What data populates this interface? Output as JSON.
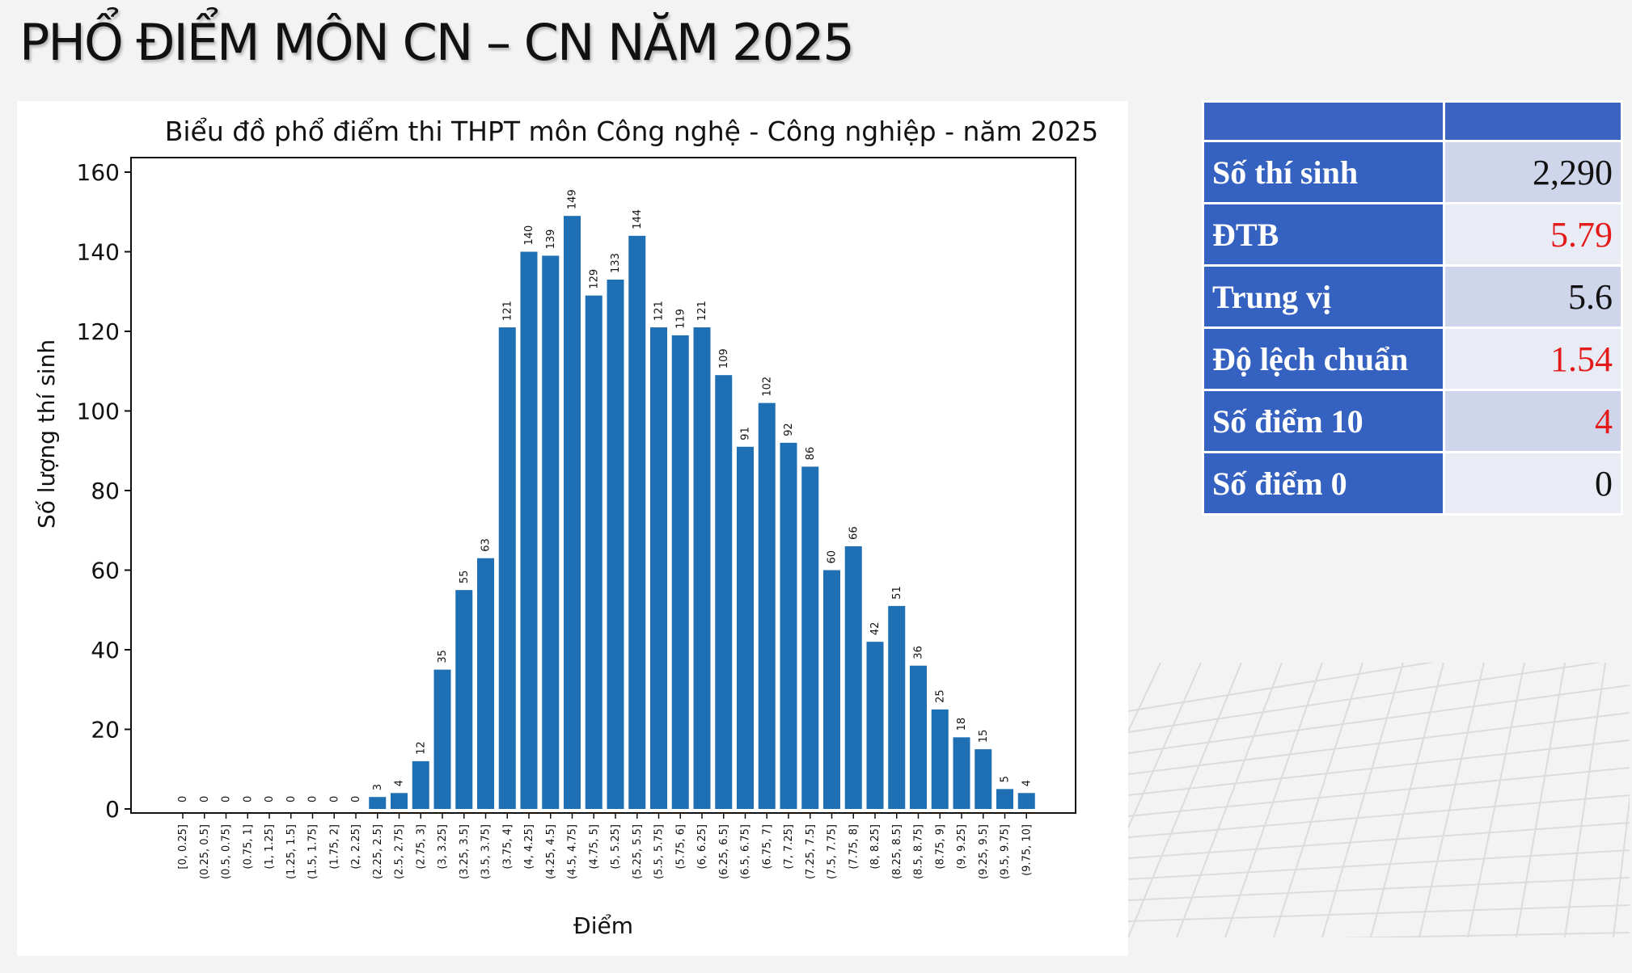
{
  "slide": {
    "title": "PHỔ ĐIỂM MÔN CN – CN NĂM 2025"
  },
  "stats_table": {
    "header": [
      "",
      ""
    ],
    "rows": [
      {
        "label": "Số thí sinh",
        "value": "2,290",
        "color": "#111111"
      },
      {
        "label": "ĐTB",
        "value": "5.79",
        "color": "#e31b1b"
      },
      {
        "label": "Trung vị",
        "value": "5.6",
        "color": "#111111"
      },
      {
        "label": "Độ lệch chuẩn",
        "value": "1.54",
        "color": "#e31b1b"
      },
      {
        "label": "Số điểm 10",
        "value": "4",
        "color": "#e31b1b"
      },
      {
        "label": "Số điểm 0",
        "value": "0",
        "color": "#111111"
      }
    ]
  },
  "chart_data": {
    "type": "bar",
    "title": "Biểu đồ phổ điểm thi THPT môn Công nghệ - Công nghiệp - năm 2025",
    "xlabel": "Điểm",
    "ylabel": "Số lượng thí sinh",
    "ylim": [
      0,
      160
    ],
    "yticks": [
      0,
      20,
      40,
      60,
      80,
      100,
      120,
      140,
      160
    ],
    "bar_color": "#1f6fb4",
    "grid": false,
    "categories": [
      "[0, 0.25]",
      "(0.25, 0.5]",
      "(0.5, 0.75]",
      "(0.75, 1]",
      "(1, 1.25]",
      "(1.25, 1.5]",
      "(1.5, 1.75]",
      "(1.75, 2]",
      "(2, 2.25]",
      "(2.25, 2.5]",
      "(2.5, 2.75]",
      "(2.75, 3]",
      "(3, 3.25]",
      "(3.25, 3.5]",
      "(3.5, 3.75]",
      "(3.75, 4]",
      "(4, 4.25]",
      "(4.25, 4.5]",
      "(4.5, 4.75]",
      "(4.75, 5]",
      "(5, 5.25]",
      "(5.25, 5.5]",
      "(5.5, 5.75]",
      "(5.75, 6]",
      "(6, 6.25]",
      "(6.25, 6.5]",
      "(6.5, 6.75]",
      "(6.75, 7]",
      "(7, 7.25]",
      "(7.25, 7.5]",
      "(7.5, 7.75]",
      "(7.75, 8]",
      "(8, 8.25]",
      "(8.25, 8.5]",
      "(8.5, 8.75]",
      "(8.75, 9]",
      "(9, 9.25]",
      "(9.25, 9.5]",
      "(9.5, 9.75]",
      "(9.75, 10]"
    ],
    "values": [
      0,
      0,
      0,
      0,
      0,
      0,
      0,
      0,
      0,
      3,
      4,
      12,
      35,
      55,
      63,
      121,
      140,
      139,
      149,
      129,
      133,
      144,
      121,
      119,
      121,
      109,
      91,
      102,
      92,
      86,
      60,
      66,
      42,
      51,
      36,
      25,
      18,
      15,
      5,
      4
    ]
  }
}
